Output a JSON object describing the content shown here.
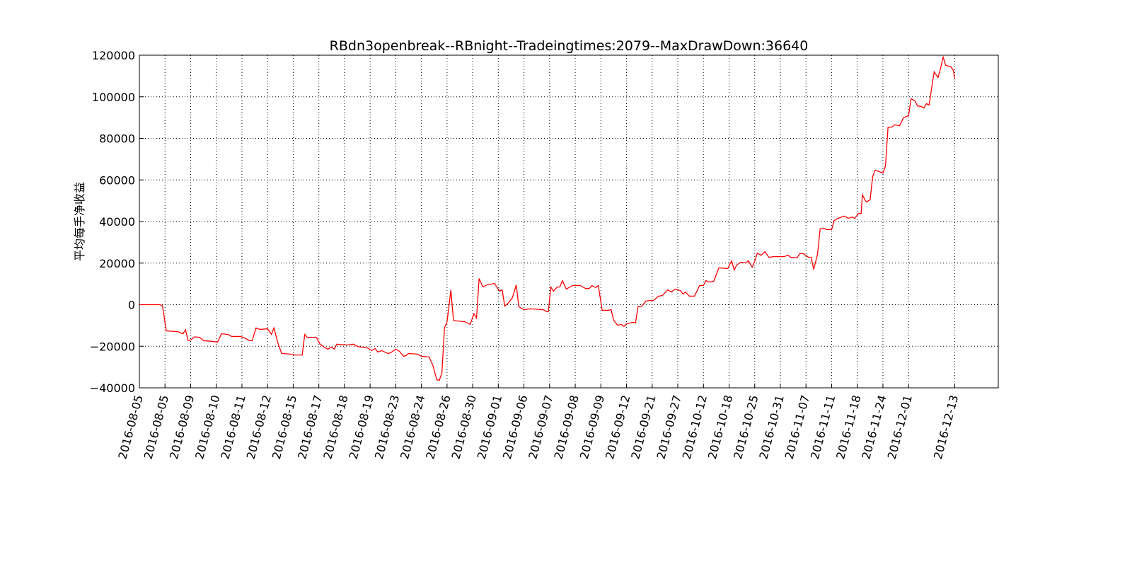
{
  "chart_data": {
    "type": "line",
    "title": "RBdn3openbreak--RBnight--Tradeingtimes:2079--MaxDrawDown:36640",
    "y_label": "平均每手净收益",
    "grid": true,
    "xlim": [
      0,
      335
    ],
    "ylim": [
      -40000,
      120000
    ],
    "yticks": [
      {
        "value": -40000,
        "label": "−40000"
      },
      {
        "value": -20000,
        "label": "−20000"
      },
      0,
      20000,
      40000,
      60000,
      80000,
      100000,
      120000
    ],
    "xticks": [
      {
        "value": 0,
        "label": "2016-08-05"
      },
      {
        "value": 10,
        "label": "2016-08-05"
      },
      {
        "value": 20,
        "label": "2016-08-09"
      },
      {
        "value": 30,
        "label": "2016-08-10"
      },
      {
        "value": 40,
        "label": "2016-08-11"
      },
      {
        "value": 50,
        "label": "2016-08-12"
      },
      {
        "value": 60,
        "label": "2016-08-15"
      },
      {
        "value": 70,
        "label": "2016-08-17"
      },
      {
        "value": 80,
        "label": "2016-08-18"
      },
      {
        "value": 90,
        "label": "2016-08-19"
      },
      {
        "value": 100,
        "label": "2016-08-23"
      },
      {
        "value": 110,
        "label": "2016-08-24"
      },
      {
        "value": 120,
        "label": "2016-08-26"
      },
      {
        "value": 130,
        "label": "2016-08-30"
      },
      {
        "value": 140,
        "label": "2016-09-01"
      },
      {
        "value": 150,
        "label": "2016-09-06"
      },
      {
        "value": 160,
        "label": "2016-09-07"
      },
      {
        "value": 170,
        "label": "2016-09-08"
      },
      {
        "value": 180,
        "label": "2016-09-09"
      },
      {
        "value": 190,
        "label": "2016-09-12"
      },
      {
        "value": 200,
        "label": "2016-09-21"
      },
      {
        "value": 210,
        "label": "2016-09-27"
      },
      {
        "value": 220,
        "label": "2016-10-12"
      },
      {
        "value": 230,
        "label": "2016-10-18"
      },
      {
        "value": 240,
        "label": "2016-10-25"
      },
      {
        "value": 250,
        "label": "2016-10-31"
      },
      {
        "value": 260,
        "label": "2016-11-07"
      },
      {
        "value": 270,
        "label": "2016-11-11"
      },
      {
        "value": 280,
        "label": "2016-11-18"
      },
      {
        "value": 290,
        "label": "2016-11-24"
      },
      {
        "value": 300,
        "label": "2016-12-01"
      },
      {
        "value": 318,
        "label": "2016-12-13"
      }
    ],
    "x": [
      0,
      8,
      9,
      10.5,
      15,
      17,
      18,
      19,
      20,
      21.5,
      23.5,
      25,
      28,
      30.5,
      32,
      34.5,
      36,
      39.5,
      41,
      43,
      44,
      45.5,
      47,
      50,
      51.5,
      52.5,
      54,
      55.5,
      59,
      60.5,
      63.5,
      64.5,
      65.5,
      69,
      70.5,
      72,
      73.5,
      75,
      76,
      77,
      81,
      83.5,
      85,
      89,
      90.5,
      92,
      93,
      94.5,
      97,
      98,
      100,
      101.5,
      103,
      104,
      105,
      108.5,
      110,
      113,
      114.5,
      116,
      117,
      118,
      119,
      120,
      121.5,
      122.5,
      123.5,
      127,
      129,
      130.5,
      131.5,
      132.5,
      134,
      135.5,
      138.5,
      140.5,
      141.5,
      142.5,
      144,
      145.5,
      147,
      148,
      150,
      152.5,
      157.5,
      159,
      159.5,
      160.5,
      161.5,
      163,
      164,
      165,
      166.5,
      169,
      172,
      174,
      175.5,
      176.5,
      178,
      179,
      180.5,
      183,
      184,
      185,
      186.5,
      188,
      189,
      190,
      192.5,
      193.5,
      194.5,
      196,
      197.5,
      199,
      200.5,
      202.5,
      204,
      206,
      207.5,
      209,
      211,
      212,
      213,
      214.5,
      216.5,
      218.5,
      220,
      221,
      222,
      224,
      226,
      229.5,
      231,
      232,
      233,
      234.5,
      236.5,
      237.5,
      239,
      240,
      241,
      242.5,
      244,
      245.5,
      247.5,
      251.5,
      253,
      254,
      256.5,
      257.5,
      259,
      261,
      262,
      263,
      264.5,
      265.5,
      267,
      268,
      270,
      271,
      272.5,
      274,
      275,
      276.5,
      278,
      279,
      280.5,
      281.5,
      282,
      283.5,
      285,
      286,
      287,
      288.5,
      290,
      291,
      292,
      293.5,
      294.5,
      296.5,
      298,
      300,
      301,
      302.5,
      303.5,
      305,
      306,
      307,
      308,
      309.5,
      310,
      311.5,
      312.5,
      313.5,
      314.5,
      316.5,
      317.5,
      318
    ],
    "series": [
      {
        "color": "#ff0000",
        "values": [
          0,
          0,
          -500,
          -12600,
          -13000,
          -14000,
          -12000,
          -17300,
          -17000,
          -15500,
          -15700,
          -17300,
          -17600,
          -18000,
          -14000,
          -14300,
          -15300,
          -15300,
          -16000,
          -17300,
          -17300,
          -11200,
          -11900,
          -11600,
          -14300,
          -11200,
          -18400,
          -23500,
          -23800,
          -24200,
          -24200,
          -14300,
          -15700,
          -15700,
          -19000,
          -20400,
          -21400,
          -20400,
          -21400,
          -19000,
          -19400,
          -19000,
          -20100,
          -20800,
          -22100,
          -21100,
          -22800,
          -22100,
          -23500,
          -23100,
          -21400,
          -22500,
          -24800,
          -24500,
          -23500,
          -23800,
          -24800,
          -25200,
          -29300,
          -36100,
          -36400,
          -32700,
          -11200,
          -8200,
          7100,
          -7500,
          -7800,
          -8200,
          -9500,
          -4400,
          -6500,
          12600,
          8500,
          9500,
          10200,
          6500,
          7100,
          -700,
          1000,
          3400,
          9500,
          -1000,
          -2400,
          -2000,
          -2400,
          -3400,
          -3400,
          8500,
          6500,
          8500,
          8500,
          11600,
          7500,
          9200,
          9200,
          7800,
          7800,
          9200,
          8200,
          9200,
          -2700,
          -2700,
          -2400,
          -7500,
          -9900,
          -9500,
          -10500,
          -9200,
          -8500,
          -8800,
          -1000,
          -700,
          1700,
          2000,
          2000,
          4100,
          4400,
          7100,
          6100,
          7500,
          6800,
          5100,
          6100,
          4100,
          4100,
          9200,
          9200,
          11600,
          10900,
          11200,
          17700,
          17400,
          21100,
          16700,
          19100,
          20400,
          20100,
          21100,
          18000,
          20800,
          24800,
          23800,
          25500,
          22800,
          23100,
          23100,
          23800,
          22800,
          22500,
          24500,
          24500,
          22800,
          22800,
          17000,
          24200,
          36400,
          36800,
          36100,
          36100,
          40500,
          41500,
          42200,
          42600,
          41500,
          42200,
          41500,
          43900,
          43900,
          52800,
          49400,
          50400,
          61600,
          64700,
          64000,
          63300,
          66700,
          85400,
          85400,
          86500,
          86100,
          89900,
          90900,
          99100,
          98000,
          95600,
          95300,
          94600,
          96700,
          96000,
          108200,
          112000,
          109300,
          113700,
          119100,
          115100,
          114400,
          112700,
          108600
        ]
      }
    ]
  }
}
